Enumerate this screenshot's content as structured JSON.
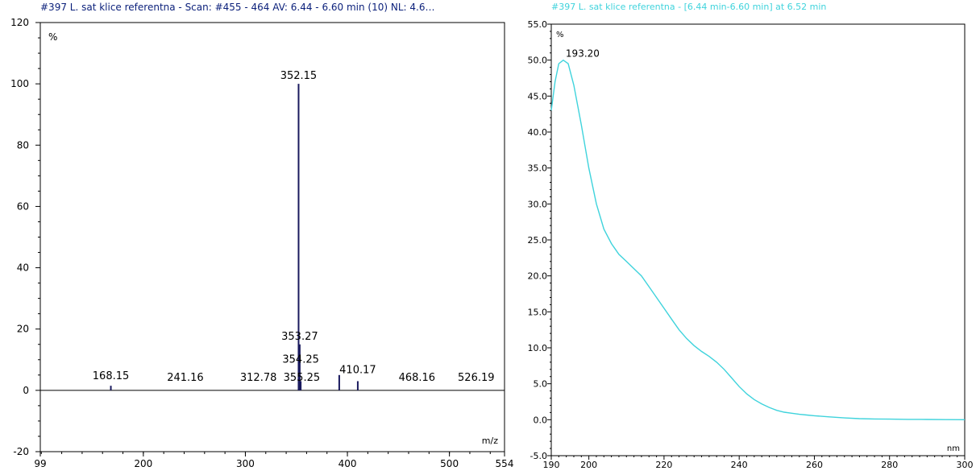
{
  "colors": {
    "ms_title": "#0a1f7a",
    "ms_trace": "#1a1a5e",
    "uv_title": "#3fd3dc",
    "uv_trace": "#3fd3dc",
    "axis": "#000000"
  },
  "chart_data": [
    {
      "type": "bar",
      "title": "#397 L. sat klice referentna - Scan: #455 - 464  AV: 6.44 - 6.60 min (10) NL: 4.6…",
      "xlabel": "m/z",
      "ylabel": "%",
      "xlim": [
        99,
        554
      ],
      "ylim": [
        -20,
        120
      ],
      "x_ticks": [
        99,
        200,
        300,
        400,
        500,
        554
      ],
      "y_ticks": [
        -20,
        0,
        20,
        40,
        60,
        80,
        100,
        120
      ],
      "grid": false,
      "peaks": [
        {
          "x": 168.15,
          "y": 1.5
        },
        {
          "x": 352.15,
          "y": 100
        },
        {
          "x": 353.27,
          "y": 15
        },
        {
          "x": 354.25,
          "y": 3
        },
        {
          "x": 392,
          "y": 5
        },
        {
          "x": 410.17,
          "y": 3
        }
      ],
      "peak_labels": [
        {
          "text": "352.15",
          "x": 352.15,
          "y": 100
        },
        {
          "text": "353.27",
          "x": 353.27,
          "y": 15
        },
        {
          "text": "354.25",
          "x": 354.25,
          "y": 7.5
        },
        {
          "text": "410.17",
          "x": 410.17,
          "y": 4
        },
        {
          "text": "168.15",
          "x": 168.15,
          "y": 2
        },
        {
          "text": "241.16",
          "x": 241.16,
          "y": 1.5
        },
        {
          "text": "312.78",
          "x": 312.78,
          "y": 1.5
        },
        {
          "text": "355.25",
          "x": 355.25,
          "y": 1.5
        },
        {
          "text": "468.16",
          "x": 468.16,
          "y": 1.5
        },
        {
          "text": "526.19",
          "x": 526.19,
          "y": 1.5
        }
      ]
    },
    {
      "type": "line",
      "title": "#397 L. sat klice referentna - [6.44 min-6.60 min] at 6.52 min",
      "xlabel": "nm",
      "ylabel": "%",
      "xlim": [
        190,
        300
      ],
      "ylim": [
        -5,
        55
      ],
      "x_ticks": [
        190,
        200,
        220,
        240,
        260,
        280,
        300
      ],
      "y_ticks": [
        -5.0,
        0.0,
        5.0,
        10.0,
        15.0,
        20.0,
        25.0,
        30.0,
        35.0,
        40.0,
        45.0,
        50.0,
        55.0
      ],
      "y_tick_labels": [
        "-5.0",
        "0.0",
        "5.0",
        "10.0",
        "15.0",
        "20.0",
        "25.0",
        "30.0",
        "35.0",
        "40.0",
        "45.0",
        "50.0",
        "55.0"
      ],
      "grid": false,
      "x": [
        190,
        191,
        192,
        193.2,
        194.5,
        196,
        198,
        200,
        202,
        204,
        206,
        208,
        210,
        212,
        214,
        216,
        218,
        220,
        222,
        224,
        226,
        228,
        230,
        232,
        234,
        236,
        238,
        240,
        242,
        244,
        246,
        248,
        250,
        252,
        254,
        256,
        258,
        260,
        264,
        268,
        272,
        276,
        280,
        285,
        290,
        295,
        300
      ],
      "values": [
        43,
        47,
        49.5,
        50,
        49.5,
        46.5,
        41,
        35,
        30,
        26.5,
        24.5,
        23,
        22,
        21,
        20,
        18.5,
        17,
        15.5,
        14,
        12.5,
        11.3,
        10.3,
        9.5,
        8.8,
        8,
        7,
        5.8,
        4.6,
        3.6,
        2.8,
        2.2,
        1.7,
        1.3,
        1.05,
        0.9,
        0.75,
        0.65,
        0.55,
        0.4,
        0.25,
        0.15,
        0.1,
        0.08,
        0.05,
        0.04,
        0.02,
        0
      ],
      "peak_labels": [
        {
          "text": "193.20",
          "x": 193.2,
          "y": 50
        }
      ]
    }
  ]
}
